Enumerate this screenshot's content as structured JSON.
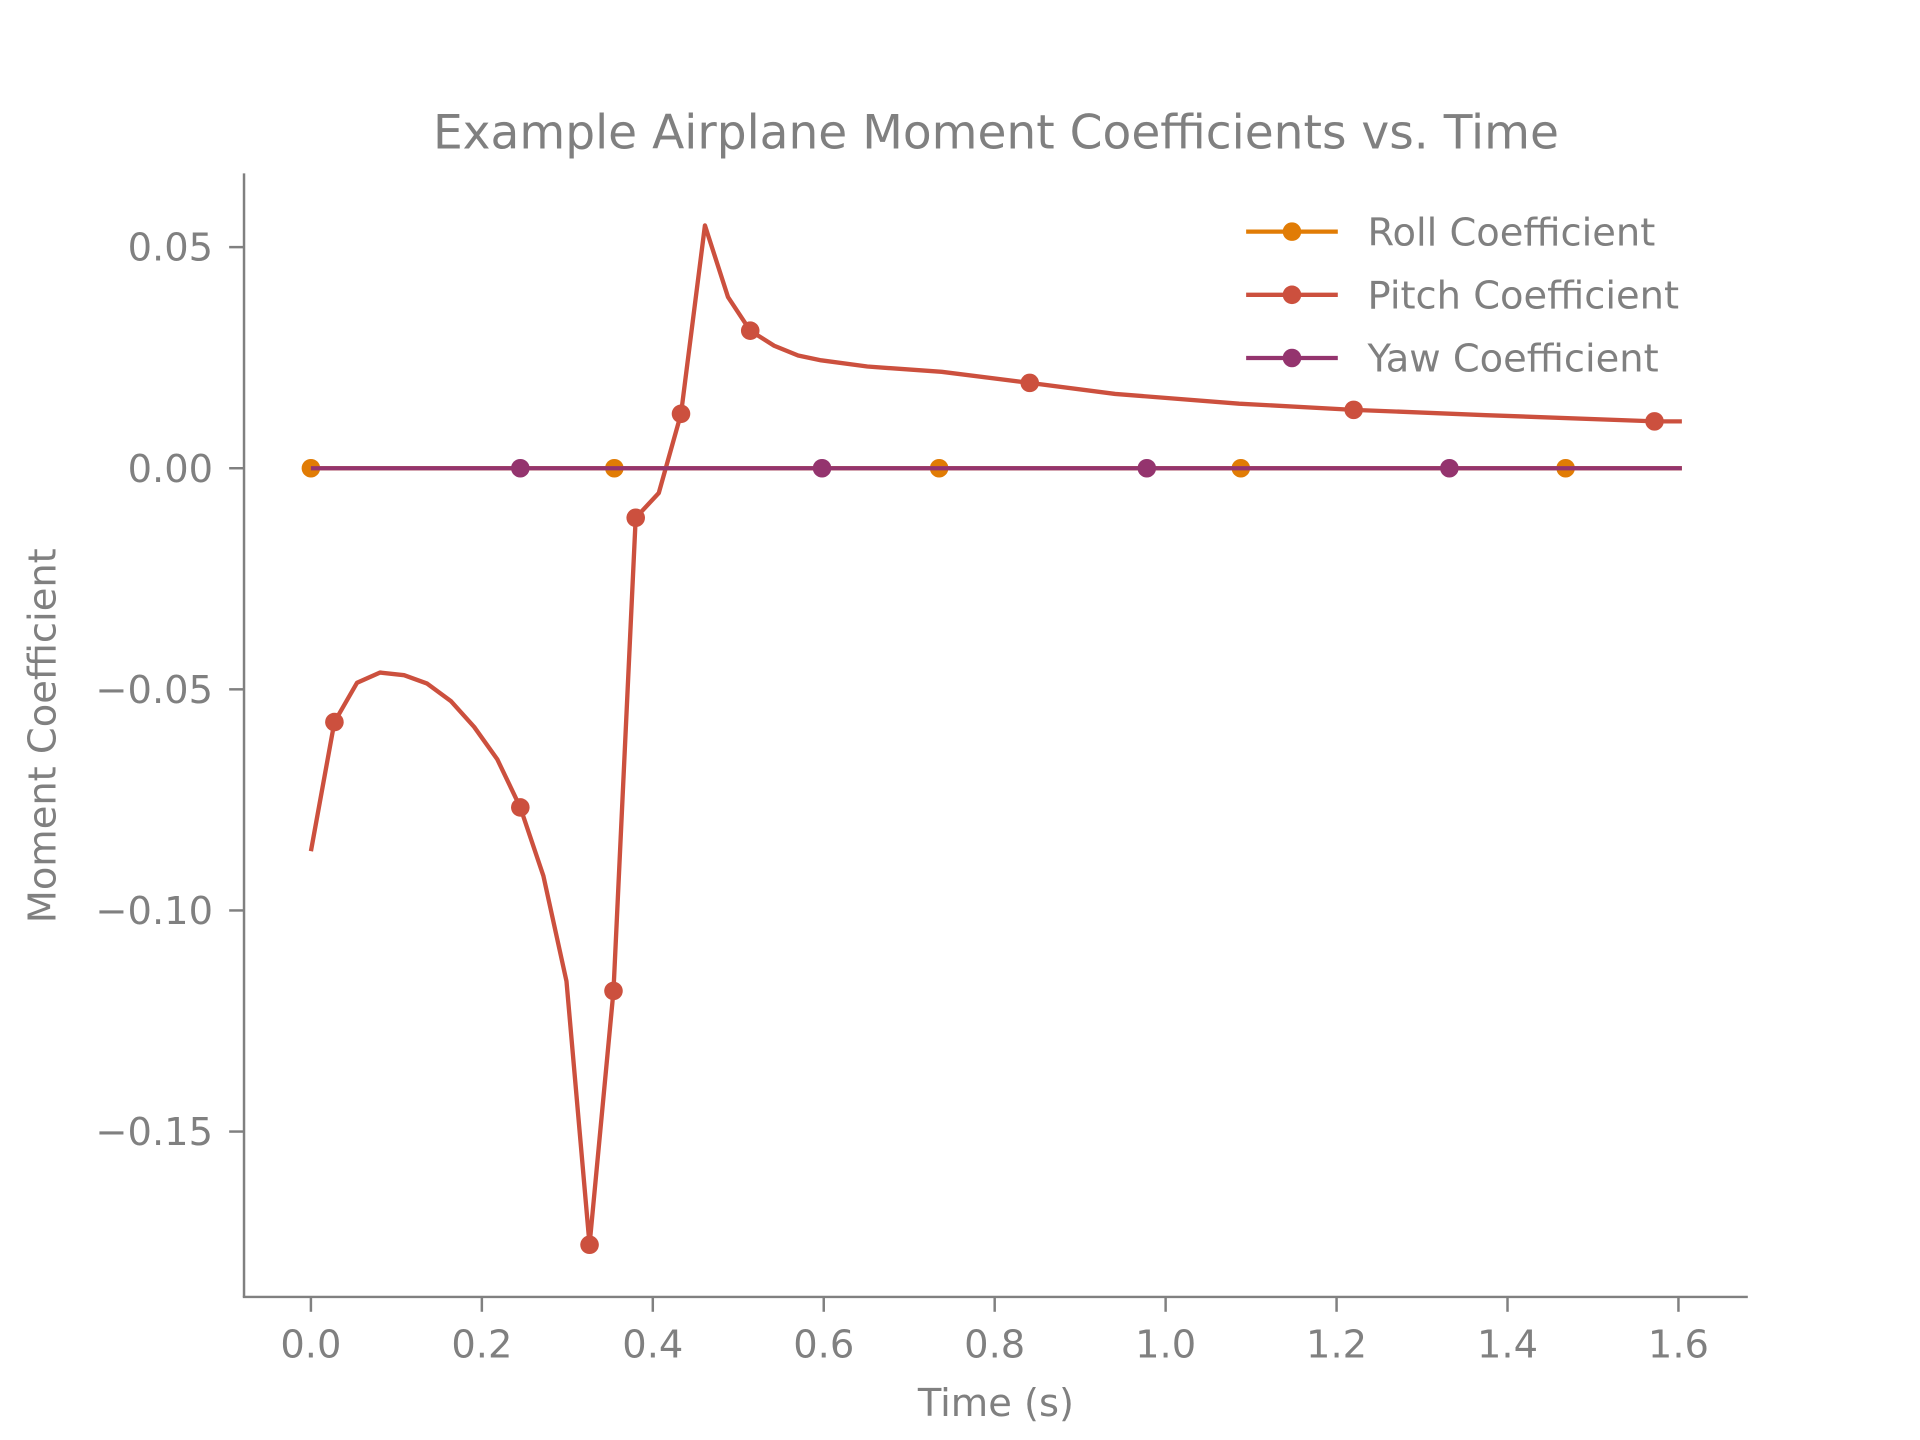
{
  "chart_data": {
    "type": "line",
    "title": "Example Airplane Moment Coefficients vs. Time",
    "xlabel": "Time (s)",
    "ylabel": "Moment Coefficient",
    "xlim": [
      -0.08,
      1.68
    ],
    "ylim": [
      -0.187,
      0.066
    ],
    "xticks": [
      0.0,
      0.2,
      0.4,
      0.6,
      0.8,
      1.0,
      1.2,
      1.4,
      1.6
    ],
    "xtick_labels": [
      "0.0",
      "0.2",
      "0.4",
      "0.6",
      "0.8",
      "1.0",
      "1.2",
      "1.4",
      "1.6"
    ],
    "yticks": [
      0.05,
      0.0,
      -0.05,
      -0.1,
      -0.15
    ],
    "ytick_labels": [
      "0.05",
      "0.00",
      "−0.05",
      "−0.10",
      "−0.15"
    ],
    "grid": false,
    "legend_position": "upper right",
    "series": [
      {
        "name": "Roll Coefficient",
        "color": "#e17c05",
        "x": [
          0.0,
          1.604
        ],
        "y": [
          0.0,
          0.0
        ],
        "markers_x": [
          0.0,
          0.355,
          0.735,
          1.088,
          1.468
        ]
      },
      {
        "name": "Pitch Coefficient",
        "color": "#cc503e",
        "x": [
          0.0,
          0.0275,
          0.054,
          0.081,
          0.109,
          0.136,
          0.164,
          0.191,
          0.218,
          0.245,
          0.272,
          0.299,
          0.326,
          0.354,
          0.38,
          0.407,
          0.433,
          0.461,
          0.488,
          0.514,
          0.542,
          0.57,
          0.597,
          0.651,
          0.738,
          0.841,
          0.941,
          1.086,
          1.22,
          1.375,
          1.572,
          1.604
        ],
        "y": [
          -0.0866,
          -0.0574,
          -0.0485,
          -0.0462,
          -0.0468,
          -0.0487,
          -0.0527,
          -0.0585,
          -0.0658,
          -0.0767,
          -0.0922,
          -0.116,
          -0.1756,
          -0.1182,
          -0.0112,
          -0.0056,
          0.0123,
          0.0549,
          0.0387,
          0.0311,
          0.0277,
          0.0255,
          0.0244,
          0.023,
          0.0218,
          0.0193,
          0.0168,
          0.0146,
          0.0132,
          0.012,
          0.0106,
          0.0106
        ],
        "markers_x": [
          0.0275,
          0.245,
          0.326,
          0.354,
          0.38,
          0.433,
          0.514,
          0.841,
          1.22,
          1.572
        ]
      },
      {
        "name": "Yaw Coefficient",
        "color": "#94346e",
        "x": [
          0.0,
          1.604
        ],
        "y": [
          0.0,
          0.0
        ],
        "markers_x": [
          0.245,
          0.598,
          0.978,
          1.332
        ]
      }
    ]
  }
}
